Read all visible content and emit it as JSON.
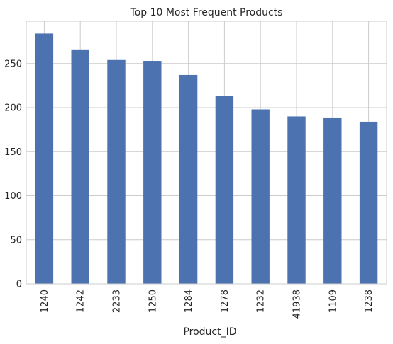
{
  "chart_data": {
    "type": "bar",
    "title": "Top 10 Most Frequent Products",
    "xlabel": "Product_ID",
    "ylabel": "",
    "categories": [
      "1240",
      "1242",
      "2233",
      "1250",
      "1284",
      "1278",
      "1232",
      "41938",
      "1109",
      "1238"
    ],
    "values": [
      284,
      266,
      254,
      253,
      237,
      213,
      198,
      190,
      188,
      184
    ],
    "ylim": [
      0,
      298
    ],
    "yticks": [
      0,
      50,
      100,
      150,
      200,
      250
    ],
    "grid": true,
    "bar_color": "#4c72b0",
    "grid_color": "#cccccc"
  }
}
